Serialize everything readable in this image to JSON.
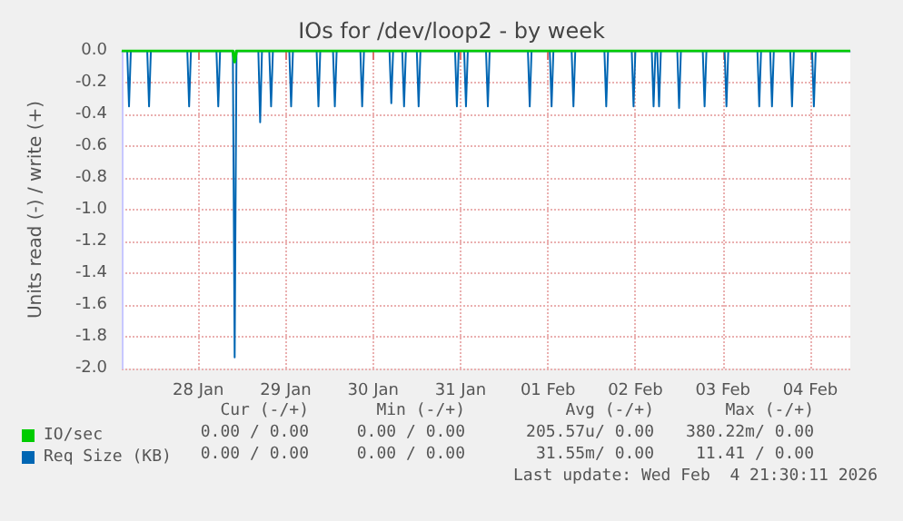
{
  "chart_data": {
    "type": "line",
    "title": "IOs for /dev/loop2 - by week",
    "ylabel": "Units read (-) / write (+)",
    "xlim": [
      "2026-01-27T15:00",
      "2026-02-04T23:00"
    ],
    "xticks": [
      {
        "value": "2026-01-28T12:00",
        "label": "28 Jan"
      },
      {
        "value": "2026-01-29T12:00",
        "label": "29 Jan"
      },
      {
        "value": "2026-01-30T12:00",
        "label": "30 Jan"
      },
      {
        "value": "2026-01-31T12:00",
        "label": "31 Jan"
      },
      {
        "value": "2026-02-01T12:00",
        "label": "01 Feb"
      },
      {
        "value": "2026-02-02T12:00",
        "label": "02 Feb"
      },
      {
        "value": "2026-02-03T12:00",
        "label": "03 Feb"
      },
      {
        "value": "2026-02-04T12:00",
        "label": "04 Feb"
      }
    ],
    "ylim": [
      -2.0,
      0.0
    ],
    "yticks": [
      {
        "value": -2.0,
        "label": "-2.0"
      },
      {
        "value": -1.8,
        "label": "-1.8"
      },
      {
        "value": -1.6,
        "label": "-1.6"
      },
      {
        "value": -1.4,
        "label": "-1.4"
      },
      {
        "value": -1.2,
        "label": "-1.2"
      },
      {
        "value": -1.0,
        "label": "-1.0"
      },
      {
        "value": -0.8,
        "label": "-0.8"
      },
      {
        "value": -0.6,
        "label": "-0.6"
      },
      {
        "value": -0.4,
        "label": "-0.4"
      },
      {
        "value": -0.2,
        "label": "-0.2"
      },
      {
        "value": 0,
        "label": "0.0"
      }
    ],
    "grid": true,
    "legend": "bottom left",
    "marker": "none",
    "line_style": "solid",
    "series": [
      {
        "name": "IO/sec",
        "color": "#00cc00",
        "x": [
          "2026-01-27T15:00",
          "2026-01-28T21:30",
          "2026-01-28T22:00",
          "2026-01-28T22:30",
          "2026-02-04T23:00"
        ],
        "values": [
          0,
          0,
          -0.07,
          0,
          0
        ]
      },
      {
        "name": "Req Size (KB)",
        "color": "#0066b3",
        "x": [
          "2026-01-27T15:00",
          "2026-01-27T16:30",
          "2026-01-27T17:00",
          "2026-01-27T17:30",
          "2026-01-27T22:00",
          "2026-01-27T22:30",
          "2026-01-27T23:00",
          "2026-01-28T09:00",
          "2026-01-28T09:30",
          "2026-01-28T10:00",
          "2026-01-28T17:00",
          "2026-01-28T17:30",
          "2026-01-28T18:00",
          "2026-01-28T21:30",
          "2026-01-28T22:00",
          "2026-01-28T22:30",
          "2026-01-29T04:30",
          "2026-01-29T05:00",
          "2026-01-29T05:30",
          "2026-01-29T07:30",
          "2026-01-29T08:00",
          "2026-01-29T08:30",
          "2026-01-29T13:00",
          "2026-01-29T13:30",
          "2026-01-29T14:00",
          "2026-01-29T20:30",
          "2026-01-29T21:00",
          "2026-01-29T21:30",
          "2026-01-30T01:00",
          "2026-01-30T01:30",
          "2026-01-30T02:00",
          "2026-01-30T08:30",
          "2026-01-30T09:00",
          "2026-01-30T09:30",
          "2026-01-30T16:30",
          "2026-01-30T17:00",
          "2026-01-30T17:30",
          "2026-01-30T20:00",
          "2026-01-30T20:30",
          "2026-01-30T21:00",
          "2026-01-31T00:00",
          "2026-01-31T00:30",
          "2026-01-31T01:00",
          "2026-01-31T10:30",
          "2026-01-31T11:00",
          "2026-01-31T11:30",
          "2026-01-31T13:00",
          "2026-01-31T13:30",
          "2026-01-31T14:00",
          "2026-01-31T19:00",
          "2026-01-31T19:30",
          "2026-01-31T20:00",
          "2026-02-01T06:30",
          "2026-02-01T07:00",
          "2026-02-01T07:30",
          "2026-02-01T12:30",
          "2026-02-01T13:00",
          "2026-02-01T13:30",
          "2026-02-01T18:30",
          "2026-02-01T19:00",
          "2026-02-01T19:30",
          "2026-02-02T03:30",
          "2026-02-02T04:00",
          "2026-02-02T04:30",
          "2026-02-02T11:00",
          "2026-02-02T11:30",
          "2026-02-02T12:00",
          "2026-02-02T16:30",
          "2026-02-02T17:00",
          "2026-02-02T17:30",
          "2026-02-02T18:00",
          "2026-02-02T18:30",
          "2026-02-02T19:00",
          "2026-02-02T23:30",
          "2026-02-03T00:00",
          "2026-02-03T00:30",
          "2026-02-03T06:30",
          "2026-02-03T07:00",
          "2026-02-03T07:30",
          "2026-02-03T12:30",
          "2026-02-03T13:00",
          "2026-02-03T13:30",
          "2026-02-03T21:30",
          "2026-02-03T22:00",
          "2026-02-03T22:30",
          "2026-02-04T01:00",
          "2026-02-04T01:30",
          "2026-02-04T02:00",
          "2026-02-04T06:30",
          "2026-02-04T07:00",
          "2026-02-04T07:30",
          "2026-02-04T12:30",
          "2026-02-04T13:00",
          "2026-02-04T13:30",
          "2026-02-04T23:00"
        ],
        "values": [
          0,
          0,
          -0.35,
          0,
          0,
          -0.35,
          0,
          0,
          -0.35,
          0,
          0,
          -0.35,
          0,
          0,
          -1.93,
          0,
          0,
          -0.45,
          0,
          0,
          -0.35,
          0,
          0,
          -0.35,
          0,
          0,
          -0.35,
          0,
          0,
          -0.35,
          0,
          0,
          -0.35,
          0,
          0,
          -0.33,
          0,
          0,
          -0.35,
          0,
          0,
          -0.35,
          0,
          0,
          -0.35,
          0,
          0,
          -0.35,
          0,
          0,
          -0.35,
          0,
          0,
          -0.35,
          0,
          0,
          -0.35,
          0,
          0,
          -0.35,
          0,
          0,
          -0.35,
          0,
          0,
          -0.35,
          0,
          0,
          -0.35,
          0,
          0,
          -0.35,
          0,
          0,
          -0.36,
          0,
          0,
          -0.35,
          0,
          0,
          -0.35,
          0,
          0,
          -0.35,
          0,
          0,
          -0.35,
          0,
          0,
          -0.35,
          0,
          0,
          -0.35,
          0,
          0
        ]
      }
    ],
    "annotations": [
      "Cur (-/+)",
      "Min (-/+)",
      "Avg (-/+)",
      "Max (-/+)",
      "0.00 / 0.00",
      "0.00 / 0.00",
      "205.57u/ 0.00",
      "380.22m/ 0.00",
      "0.00 / 0.00",
      "0.00 / 0.00",
      "31.55m/ 0.00",
      "11.41 / 0.00",
      "Last update: Wed Feb  4 21:30:11 2026"
    ]
  }
}
